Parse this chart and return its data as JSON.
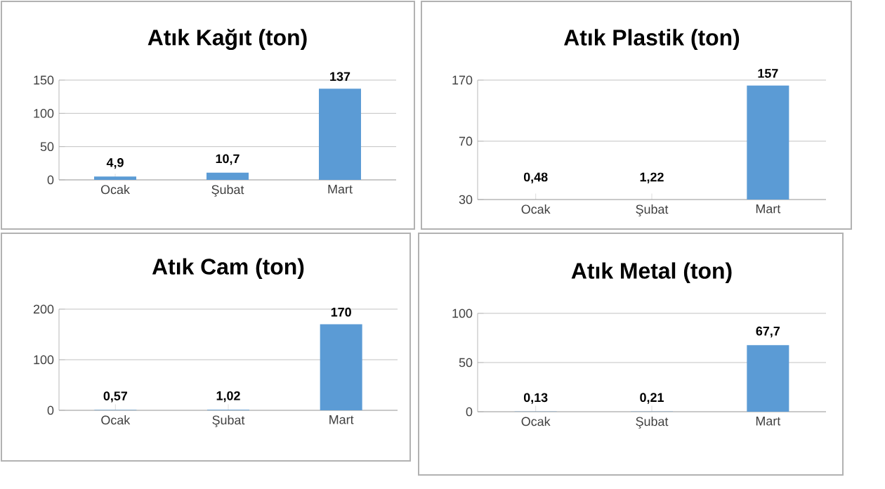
{
  "chart_data": [
    {
      "type": "bar",
      "title": "Atık Kağıt (ton)",
      "categories": [
        "Ocak",
        "Şubat",
        "Mart"
      ],
      "values": [
        4.9,
        10.7,
        137
      ],
      "value_labels": [
        "4,9",
        "10,7",
        "137"
      ],
      "color": "#5b9bd5",
      "ylim": [
        0,
        150
      ],
      "yticks": [
        0,
        50,
        100,
        150
      ],
      "grid": "y"
    },
    {
      "type": "bar",
      "title": "Atık Plastik (ton)",
      "categories": [
        "Ocak",
        "Şubat",
        "Mart"
      ],
      "values": [
        null,
        null,
        157
      ],
      "value_labels": [
        "0,48",
        "1,22",
        "157"
      ],
      "color": "#5b9bd5",
      "log": true,
      "ylim": [
        30,
        170
      ],
      "yticks": [
        30,
        70,
        170
      ],
      "grid": "y"
    },
    {
      "type": "bar",
      "title": "Atık Cam (ton)",
      "categories": [
        "Ocak",
        "Şubat",
        "Mart"
      ],
      "values": [
        0.57,
        1.02,
        170
      ],
      "value_labels": [
        "0,57",
        "1,02",
        "170"
      ],
      "color": "#5b9bd5",
      "ylim": [
        0,
        200
      ],
      "yticks": [
        0,
        100,
        200
      ],
      "grid": "y"
    },
    {
      "type": "bar",
      "title": "Atık Metal (ton)",
      "categories": [
        "Ocak",
        "Şubat",
        "Mart"
      ],
      "values": [
        0.13,
        0.21,
        67.7
      ],
      "value_labels": [
        "0,13",
        "0,21",
        "67,7"
      ],
      "color": "#5b9bd5",
      "ylim": [
        0,
        100
      ],
      "yticks": [
        0,
        50,
        100
      ],
      "grid": "y"
    }
  ]
}
